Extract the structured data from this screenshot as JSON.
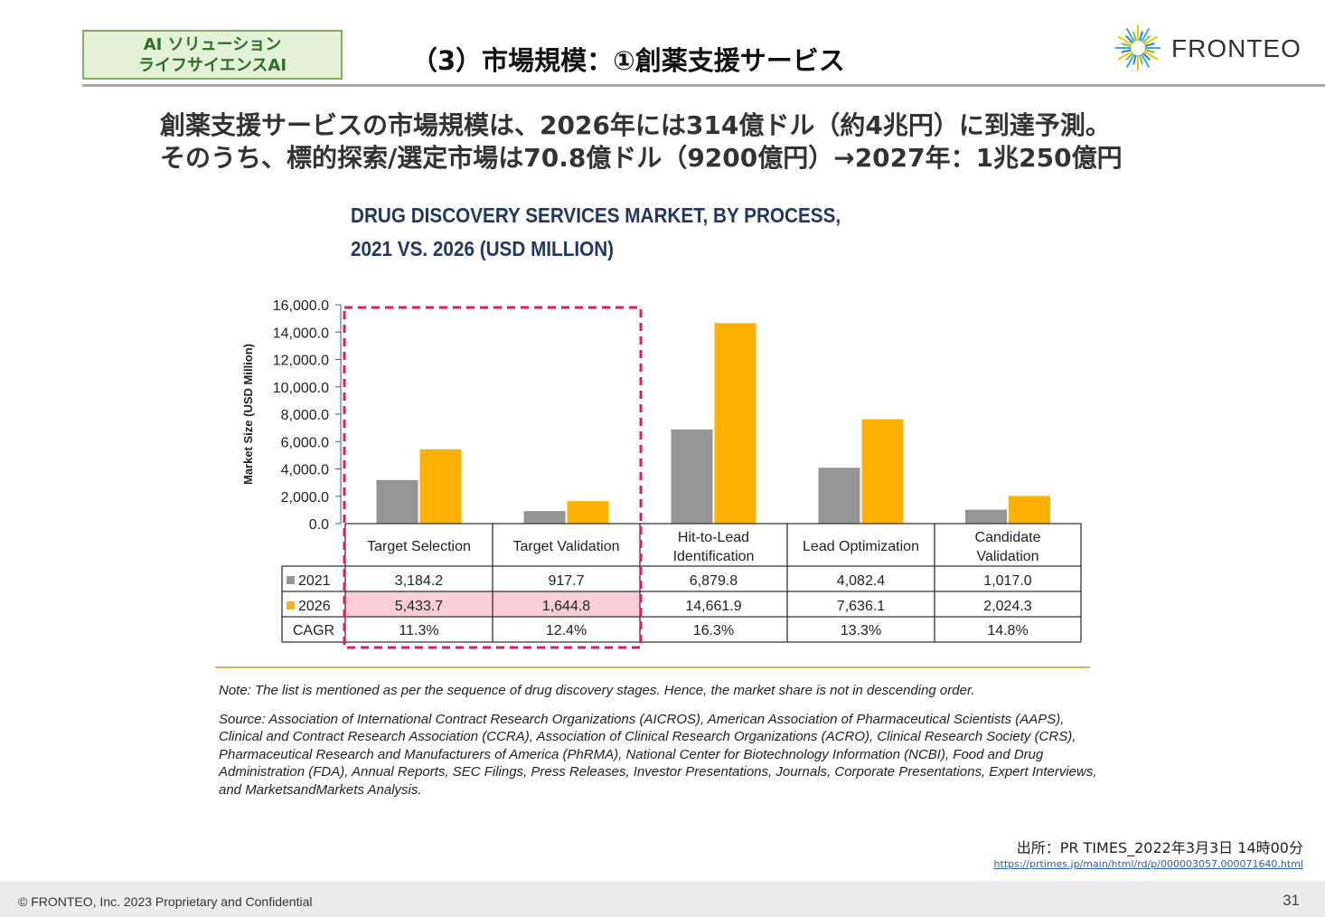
{
  "header": {
    "tag_line1": "AI ソリューション",
    "tag_line2": "ライフサイエンスAI",
    "title": "（3）市場規模：①創薬支援サービス",
    "logo_text": "FRONTEO",
    "logo_icon": "starburst-icon"
  },
  "headline": {
    "line1": "創薬支援サービスの市場規模は、2026年には314億ドル（約4兆円）に到達予測。",
    "line2": "そのうち、標的探索/選定市場は70.8億ドル（9200億円）→2027年：1兆250億円"
  },
  "chart_data": {
    "type": "bar",
    "title_line1": "DRUG DISCOVERY SERVICES MARKET, BY PROCESS,",
    "title_line2": "2021 VS. 2026 (USD MILLION)",
    "ylabel": "Market Size (USD Million)",
    "ylim": [
      0,
      16000
    ],
    "yticks": [
      "16,000.0",
      "14,000.0",
      "12,000.0",
      "10,000.0",
      "8,000.0",
      "6,000.0",
      "4,000.0",
      "2,000.0",
      "0.0"
    ],
    "categories": [
      "Target Selection",
      "Target Validation",
      "Hit-to-Lead\nIdentification",
      "Lead Optimization",
      "Candidate\nValidation"
    ],
    "series": [
      {
        "name": "2021",
        "color": "#959595",
        "values": [
          3184.2,
          917.7,
          6879.8,
          4082.4,
          1017.0
        ],
        "labels": [
          "3,184.2",
          "917.7",
          "6,879.8",
          "4,082.4",
          "1,017.0"
        ]
      },
      {
        "name": "2026",
        "color": "#ffb000",
        "values": [
          5433.7,
          1644.8,
          14661.9,
          7636.1,
          2024.3
        ],
        "labels": [
          "5,433.7",
          "1,644.8",
          "14,661.9",
          "7,636.1",
          "2,024.3"
        ]
      }
    ],
    "cagr_label": "CAGR",
    "cagr": [
      "11.3%",
      "12.4%",
      "16.3%",
      "13.3%",
      "14.8%"
    ],
    "highlight_categories": [
      0,
      1
    ],
    "highlight_color": "#e8185c",
    "highlight_cell_bg": "#f9cdd5",
    "grid": false,
    "legend": "table-left"
  },
  "notes": {
    "note": "Note: The list is mentioned as per the sequence of drug discovery stages. Hence, the market share is not in descending order.",
    "source": "Source: Association of International Contract Research Organizations (AICROS), American Association of Pharmaceutical Scientists (AAPS), Clinical and Contract Research Association (CCRA), Association of Clinical Research Organizations (ACRO), Clinical Research Society (CRS), Pharmaceutical Research and Manufacturers of America (PhRMA), National Center for Biotechnology Information (NCBI), Food and Drug Administration (FDA), Annual Reports, SEC Filings, Press Releases, Investor Presentations, Journals, Corporate Presentations, Expert Interviews, and MarketsandMarkets Analysis."
  },
  "citation": {
    "label": "出所：PR TIMES_2022年3月3日 14時00分",
    "url": "https://prtimes.jp/main/html/rd/p/000003057.000071640.html"
  },
  "footer": {
    "copyright": "© FRONTEO, Inc. 2023  Proprietary and Confidential",
    "page_number": "31"
  }
}
